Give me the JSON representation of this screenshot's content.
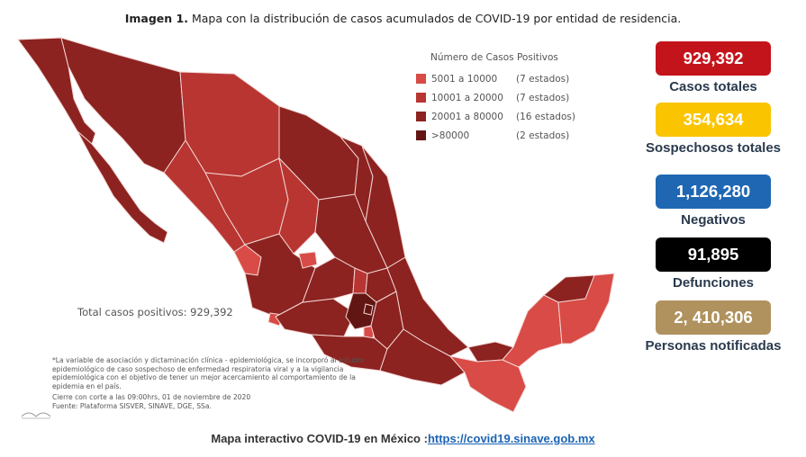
{
  "caption": {
    "prefix": "Imagen 1.",
    "text": "Mapa con la distribución de casos acumulados de COVID-19 por entidad de residencia."
  },
  "legend": {
    "title": "Número de Casos Positivos",
    "items": [
      {
        "range": "5001 a  10000",
        "count": "(7 estados)",
        "color": "#d84b46"
      },
      {
        "range": "10001 a  20000",
        "count": "(7 estados)",
        "color": "#b83531"
      },
      {
        "range": "20001 a  80000",
        "count": "(16 estados)",
        "color": "#8c2320"
      },
      {
        "range": ">80000",
        "count": "(2 estados)",
        "color": "#621613"
      }
    ]
  },
  "map": {
    "total_label": "Total casos positivos: 929,392"
  },
  "footnote": "*La variable de asociación y dictaminación clínica - epidemiológica, se incorporó al estudio epidemiológico de caso sospechoso de enfermedad respiratoria viral y a la vigilancia epidemiológica con el objetivo de tener un mejor acercamiento al comportamiento de la epidemia en el país.",
  "cutoff": {
    "line1": "Cierre con corte a las 09:00hrs, 01 de noviembre de 2020",
    "line2": "Fuente: Plataforma SISVER, SINAVE, DGE, SSa."
  },
  "stats": [
    {
      "value": "929,392",
      "label": "Casos totales",
      "color": "#c4141b"
    },
    {
      "value": "354,634",
      "label": "Sospechosos totales",
      "color": "#fbc400"
    },
    {
      "value": "1,126,280",
      "label": "Negativos",
      "color": "#1f67b3"
    },
    {
      "value": "91,895",
      "label": "Defunciones",
      "color": "#000000"
    },
    {
      "value": "2, 410,306",
      "label": "Personas notificadas",
      "color": "#b0925e"
    }
  ],
  "footer": {
    "text": "Mapa interactivo COVID-19 en México :",
    "link": "https://covid19.sinave.gob.mx"
  }
}
